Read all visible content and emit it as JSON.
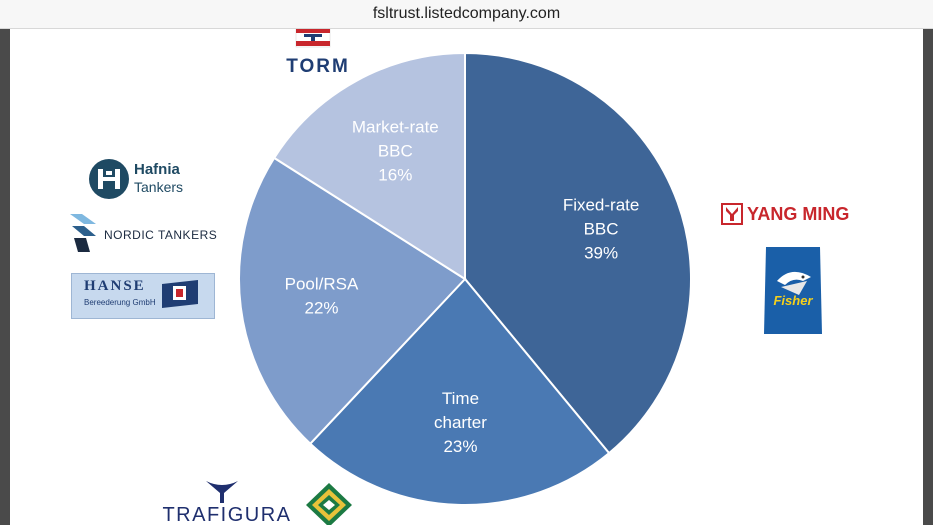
{
  "browser": {
    "url": "fsltrust.listedcompany.com"
  },
  "chart_data": {
    "type": "pie",
    "slices": [
      {
        "label_lines": [
          "Fixed-rate",
          "BBC"
        ],
        "value": 39,
        "value_label": "39%",
        "color": "#3e6597"
      },
      {
        "label_lines": [
          "Time",
          "charter"
        ],
        "value": 23,
        "value_label": "23%",
        "color": "#4a79b3"
      },
      {
        "label_lines": [
          "Pool/RSA"
        ],
        "value": 22,
        "value_label": "22%",
        "color": "#7e9ccb"
      },
      {
        "label_lines": [
          "Market-rate",
          "BBC"
        ],
        "value": 16,
        "value_label": "16%",
        "color": "#b5c3e0"
      }
    ]
  },
  "logos": {
    "torm": "TORM",
    "hafnia": {
      "line1": "Hafnia",
      "line2": "Tankers"
    },
    "nordic": "NORDIC TANKERS",
    "hanse": {
      "line1": "HANSE",
      "line2": "Bereederung GmbH"
    },
    "yangming": "YANG MING",
    "fisher": "Fisher",
    "trafigura": "TRAFIGURA"
  }
}
